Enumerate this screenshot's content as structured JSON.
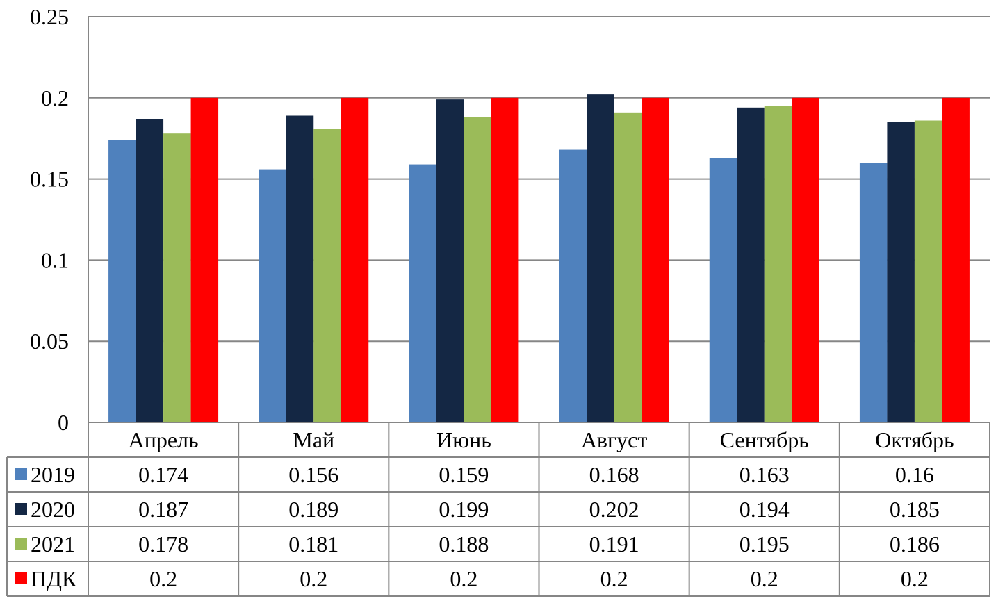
{
  "chart_data": {
    "type": "bar",
    "title": "",
    "xlabel": "",
    "ylabel": "",
    "ylim": [
      0,
      0.25
    ],
    "yticks": [
      "0",
      "0.05",
      "0.1",
      "0.15",
      "0.2",
      "0.25"
    ],
    "ytick_values": [
      0,
      0.05,
      0.1,
      0.15,
      0.2,
      0.25
    ],
    "grid": true,
    "legend": "data-table",
    "categories": [
      "Апрель",
      "Май",
      "Июнь",
      "Август",
      "Сентябрь",
      "Октябрь"
    ],
    "series": [
      {
        "name": "2019",
        "color": "#4f81bd",
        "values": [
          0.174,
          0.156,
          0.159,
          0.168,
          0.163,
          0.16
        ],
        "labels": [
          "0.174",
          "0.156",
          "0.159",
          "0.168",
          "0.163",
          "0.16"
        ]
      },
      {
        "name": "2020",
        "color": "#142744",
        "values": [
          0.187,
          0.189,
          0.199,
          0.202,
          0.194,
          0.185
        ],
        "labels": [
          "0.187",
          "0.189",
          "0.199",
          "0.202",
          "0.194",
          "0.185"
        ]
      },
      {
        "name": "2021",
        "color": "#9bbb59",
        "values": [
          0.178,
          0.181,
          0.188,
          0.191,
          0.195,
          0.186
        ],
        "labels": [
          "0.178",
          "0.181",
          "0.188",
          "0.191",
          "0.195",
          "0.186"
        ]
      },
      {
        "name": "ПДК",
        "color": "#ff0000",
        "values": [
          0.2,
          0.2,
          0.2,
          0.2,
          0.2,
          0.2
        ],
        "labels": [
          "0.2",
          "0.2",
          "0.2",
          "0.2",
          "0.2",
          "0.2"
        ]
      }
    ]
  }
}
